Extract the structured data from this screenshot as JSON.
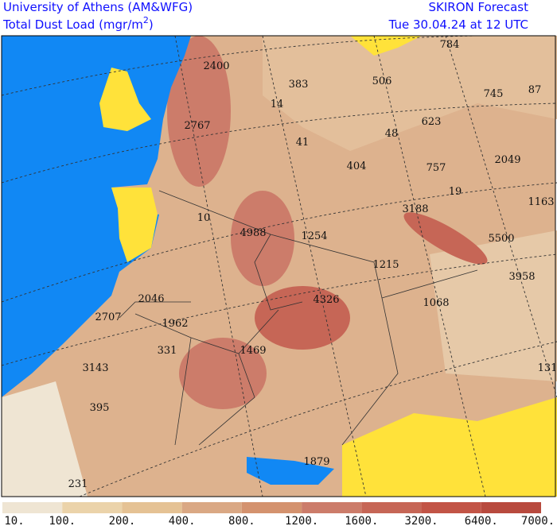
{
  "header": {
    "institution": "University of Athens (AM&WFG)",
    "quantity": [
      "Total Dust Load (mgr/m",
      "2",
      ")"
    ],
    "product": "SKIRON Forecast",
    "valid_time": "Tue 30.04.24 at 12 UTC"
  },
  "point_labels": [
    "2400",
    "383",
    "506",
    "784",
    "745",
    "87",
    "14",
    "2767",
    "623",
    "48",
    "41",
    "404",
    "757",
    "2049",
    "19",
    "1163",
    "10",
    "3188",
    "4988",
    "1254",
    "5500",
    "1215",
    "3958",
    "2046",
    "4326",
    "1068",
    "2707",
    "1962",
    "331",
    "1469",
    "3143",
    "131",
    "395",
    "1879",
    "231"
  ],
  "colorbar": {
    "labels": [
      "10.",
      "100.",
      "200.",
      "400.",
      "800.",
      "1200.",
      "1600.",
      "3200.",
      "6400.",
      "7000."
    ],
    "colors": [
      "#efe5d3",
      "#ebd3aa",
      "#e5c294",
      "#daa884",
      "#d4926e",
      "#cc7c6a",
      "#c66656",
      "#c25446",
      "#b84a3e"
    ]
  }
}
